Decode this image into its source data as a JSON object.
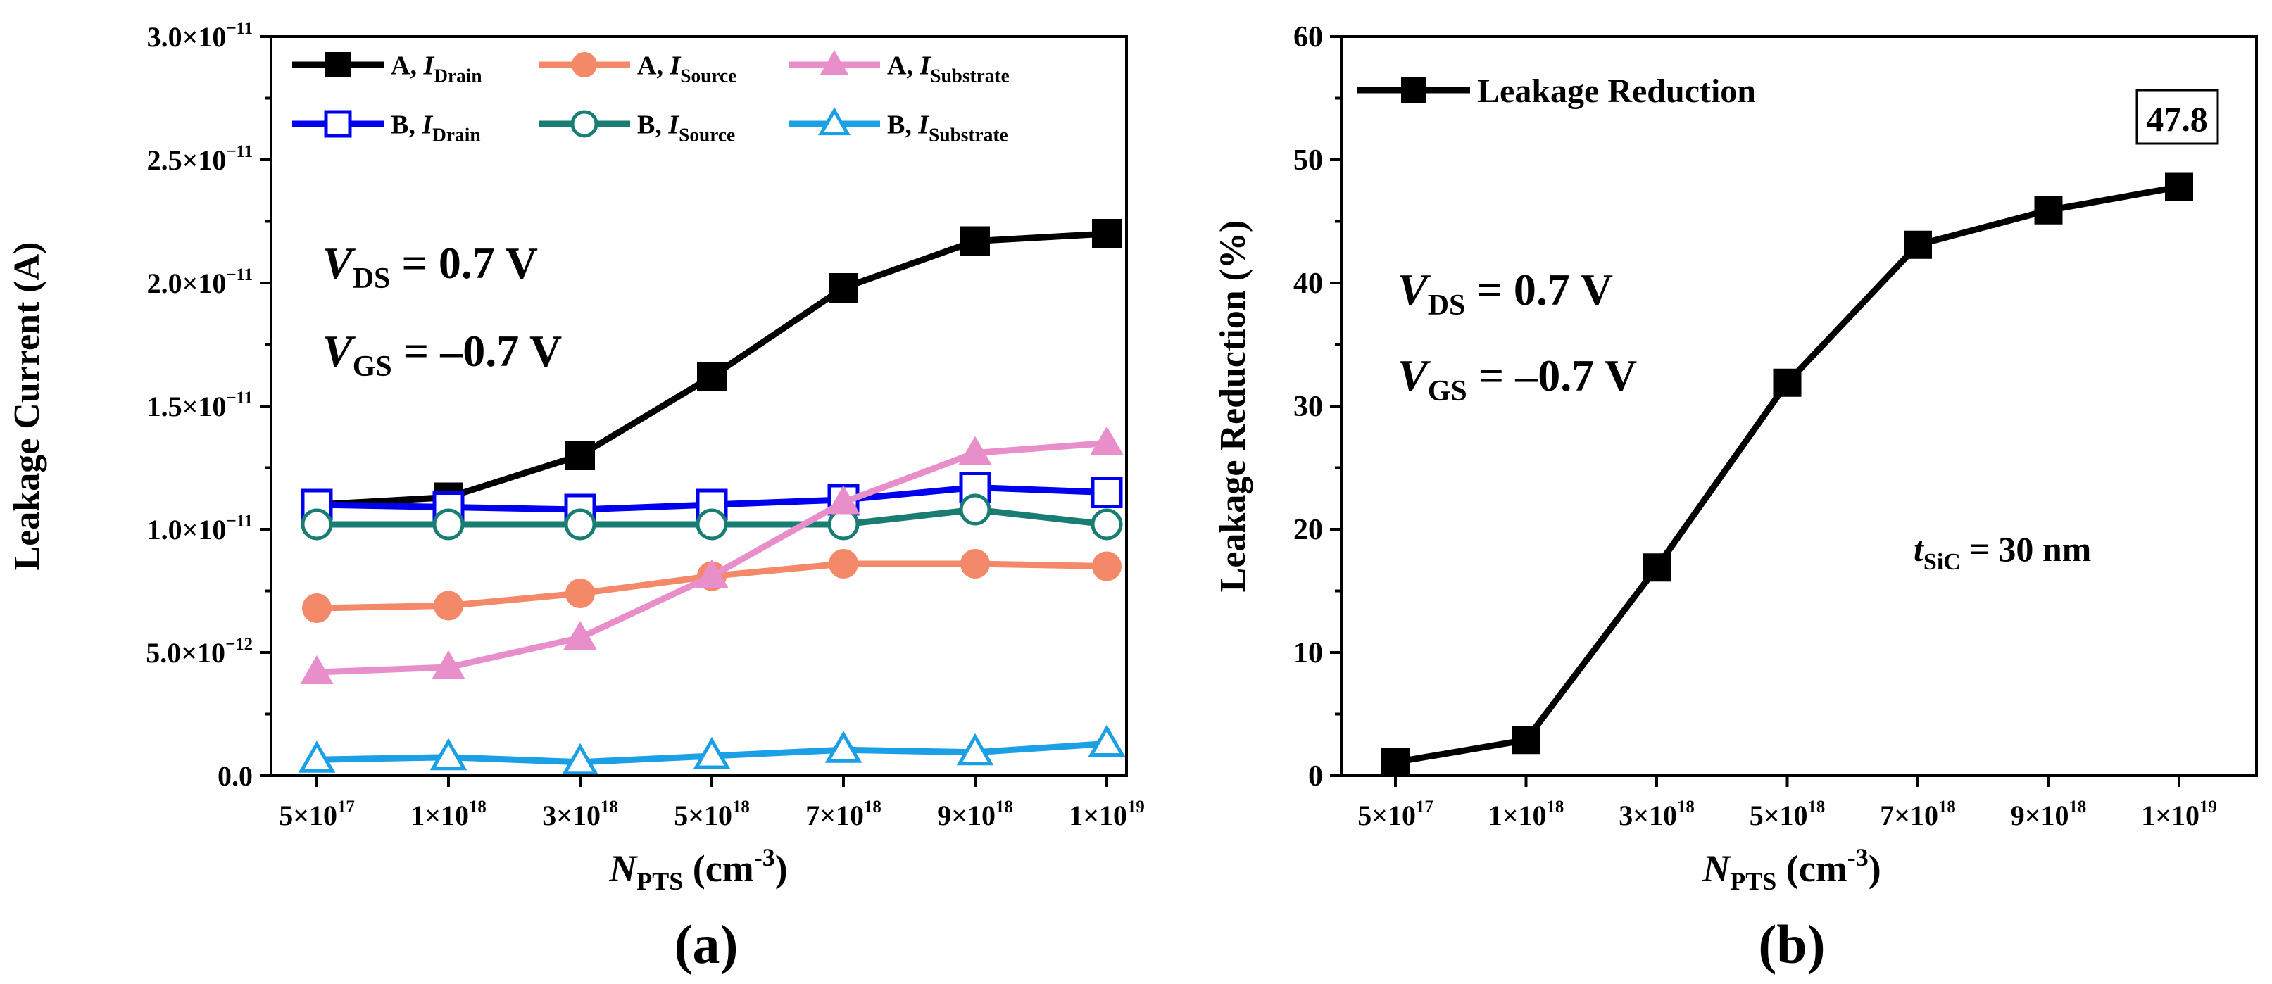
{
  "chart_data": [
    {
      "panel": "(a)",
      "type": "line",
      "title": "",
      "categories": [
        "5×10¹⁷",
        "1×10¹⁸",
        "3×10¹⁸",
        "5×10¹⁸",
        "7×10¹⁸",
        "9×10¹⁸",
        "1×10¹⁹"
      ],
      "xlabel": {
        "main": "N",
        "sub": "PTS",
        "unit": " (cm",
        "sup": "-3",
        "close": ")"
      },
      "ylabel": "Leakage Current (A)",
      "ylim": [
        0,
        3e-11
      ],
      "yticks": [
        {
          "value": 0,
          "label": "0.0"
        },
        {
          "value": 5e-12,
          "label": "5.0×10⁻¹²"
        },
        {
          "value": 1e-11,
          "label": "1.0×10⁻¹¹"
        },
        {
          "value": 1.5e-11,
          "label": "1.5×10⁻¹¹"
        },
        {
          "value": 2e-11,
          "label": "2.0×10⁻¹¹"
        },
        {
          "value": 2.5e-11,
          "label": "2.5×10⁻¹¹"
        },
        {
          "value": 3e-11,
          "label": "3.0×10⁻¹¹"
        }
      ],
      "legend_position": "top-left, two columns",
      "series": [
        {
          "name": "A, I",
          "sub": "Drain",
          "color": "#000000",
          "marker": "square",
          "filled": true,
          "values": [
            1.1e-11,
            1.13e-11,
            1.3e-11,
            1.62e-11,
            1.98e-11,
            2.17e-11,
            2.2e-11
          ]
        },
        {
          "name": "B, I",
          "sub": "Drain",
          "color": "#0000ee",
          "marker": "square",
          "filled": false,
          "values": [
            1.1e-11,
            1.09e-11,
            1.08e-11,
            1.1e-11,
            1.12e-11,
            1.17e-11,
            1.15e-11
          ]
        },
        {
          "name": "A, I",
          "sub": "Source",
          "color": "#f4896a",
          "marker": "circle",
          "filled": true,
          "values": [
            6.8e-12,
            6.9e-12,
            7.4e-12,
            8.1e-12,
            8.6e-12,
            8.6e-12,
            8.5e-12
          ]
        },
        {
          "name": "B, I",
          "sub": "Source",
          "color": "#1a7d74",
          "marker": "circle",
          "filled": false,
          "values": [
            1.02e-11,
            1.02e-11,
            1.02e-11,
            1.02e-11,
            1.02e-11,
            1.08e-11,
            1.02e-11
          ]
        },
        {
          "name": "A, I",
          "sub": "Substrate",
          "color": "#e88fcb",
          "marker": "triangle",
          "filled": true,
          "values": [
            4.2e-12,
            4.4e-12,
            5.6e-12,
            8.1e-12,
            1.11e-11,
            1.31e-11,
            1.35e-11
          ]
        },
        {
          "name": "B, I",
          "sub": "Substrate",
          "color": "#1ba0e6",
          "marker": "triangle",
          "filled": false,
          "values": [
            6.5e-13,
            7.5e-13,
            5.5e-13,
            8e-13,
            1.05e-12,
            9.5e-13,
            1.3e-12
          ]
        }
      ],
      "annotations": [
        {
          "main": "V",
          "sub": "DS",
          "text": " = 0.7 V"
        },
        {
          "main": "V",
          "sub": "GS",
          "text": " = –0.7 V"
        }
      ]
    },
    {
      "panel": "(b)",
      "type": "line",
      "title": "",
      "categories": [
        "5×10¹⁷",
        "1×10¹⁸",
        "3×10¹⁸",
        "5×10¹⁸",
        "7×10¹⁸",
        "9×10¹⁸",
        "1×10¹⁹"
      ],
      "xlabel": {
        "main": "N",
        "sub": "PTS",
        "unit": " (cm",
        "sup": "-3",
        "close": ")"
      },
      "ylabel": "Leakage Reduction (%)",
      "ylim": [
        0,
        60
      ],
      "yticks": [
        {
          "value": 0,
          "label": "0"
        },
        {
          "value": 10,
          "label": "10"
        },
        {
          "value": 20,
          "label": "20"
        },
        {
          "value": 30,
          "label": "30"
        },
        {
          "value": 40,
          "label": "40"
        },
        {
          "value": 50,
          "label": "50"
        },
        {
          "value": 60,
          "label": "60"
        }
      ],
      "legend_position": "top-left",
      "series": [
        {
          "name": "Leakage Reduction",
          "color": "#000000",
          "marker": "square",
          "filled": true,
          "values": [
            1.1,
            2.9,
            16.9,
            31.9,
            43.1,
            45.9,
            47.8
          ]
        }
      ],
      "callout": "47.8",
      "annotations": [
        {
          "main": "V",
          "sub": "DS",
          "text": " = 0.7 V"
        },
        {
          "main": "V",
          "sub": "GS",
          "text": " = –0.7 V"
        },
        {
          "main": "t",
          "sub": "SiC",
          "text": " = 30 nm"
        }
      ]
    }
  ]
}
